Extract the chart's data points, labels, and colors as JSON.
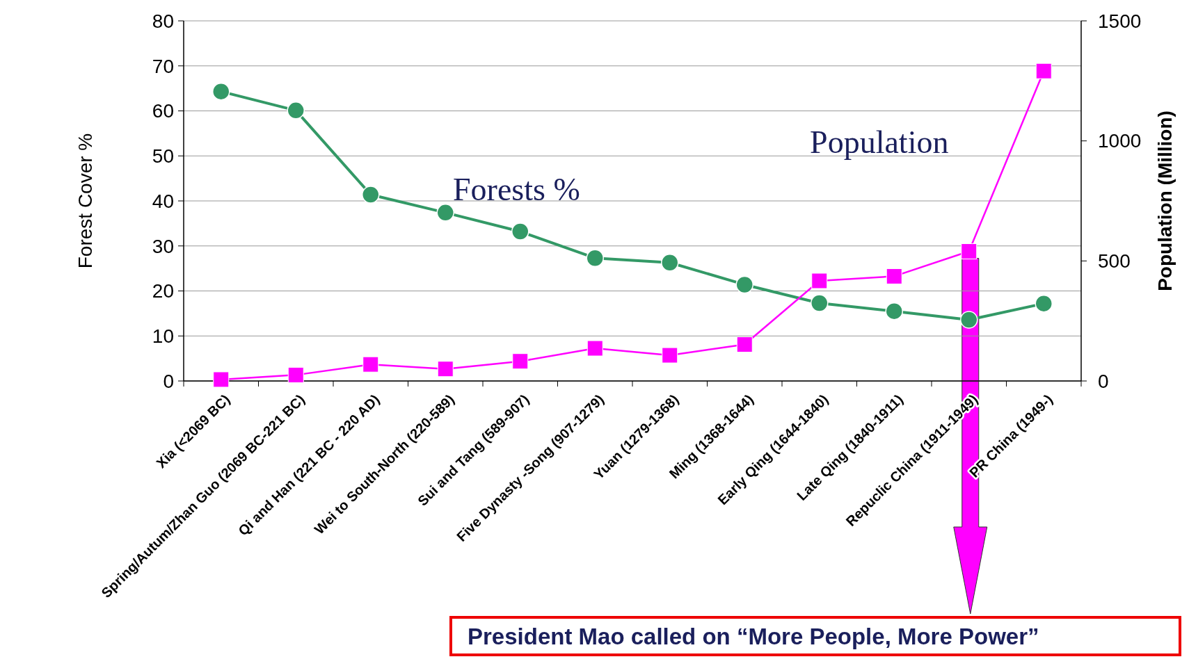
{
  "chart_data": {
    "type": "line",
    "categories": [
      "Xia (<2069 BC)",
      "Spring/Autum/Zhan Guo (2069 BC-221 BC)",
      "Qi and Han (221 BC - 220 AD)",
      "Wei to South-North (220-589)",
      "Sui and Tang (589-907)",
      "Five Dynasty -Song (907-1279)",
      "Yuan (1279-1368)",
      "Ming (1368-1644)",
      "Early Qing (1644-1840)",
      "Late Qing (1840-1911)",
      "Repuclic China (1911-1949)",
      "PR China (1949-)"
    ],
    "series": [
      {
        "name": "Forests %",
        "color": "#339966",
        "marker": "circle",
        "values": [
          64.3,
          60.1,
          41.4,
          37.4,
          33.2,
          27.3,
          26.3,
          21.4,
          17.3,
          15.5,
          13.6,
          17.2
        ]
      },
      {
        "name": "Population",
        "color": "#ff00ff",
        "marker": "square",
        "axis": "y2",
        "values": [
          6,
          25,
          69,
          50,
          82,
          136,
          107,
          152,
          417,
          436,
          540,
          1291
        ]
      }
    ],
    "ylabel": "Forest Cover %",
    "y2label": "Population (Million)",
    "ylim": [
      0,
      80
    ],
    "yticks": [
      0,
      10,
      20,
      30,
      40,
      50,
      60,
      70,
      80
    ],
    "y2lim": [
      0,
      1500
    ],
    "y2ticks": [
      0,
      500,
      1000,
      1500
    ],
    "grid": "y",
    "annotations": [
      "President Mao called on “More People, More Power”"
    ]
  }
}
